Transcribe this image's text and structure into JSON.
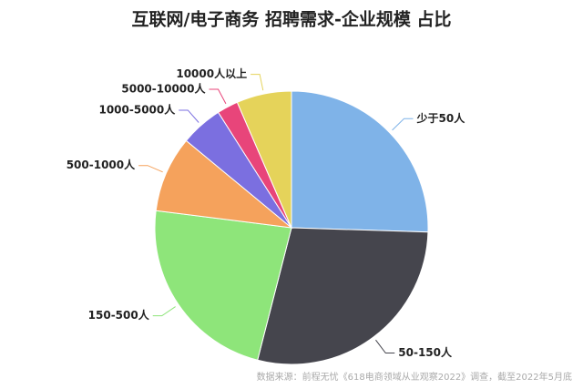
{
  "chart_data": {
    "type": "pie",
    "title": "互联网/电子商务 招聘需求-企业规模 占比",
    "categories": [
      "少于50人",
      "50-150人",
      "150-500人",
      "500-1000人",
      "1000-5000人",
      "5000-10000人",
      "10000人以上"
    ],
    "values": [
      25.5,
      28.5,
      23,
      9,
      5,
      2.5,
      6.5
    ],
    "colors": [
      "#7fb3e8",
      "#45454d",
      "#8ee57a",
      "#f5a25c",
      "#7b6fe0",
      "#e8457a",
      "#e5d35a"
    ],
    "source": "数据来源：前程无忧《618电商领域从业观察2022》调查，截至2022年5月底"
  }
}
